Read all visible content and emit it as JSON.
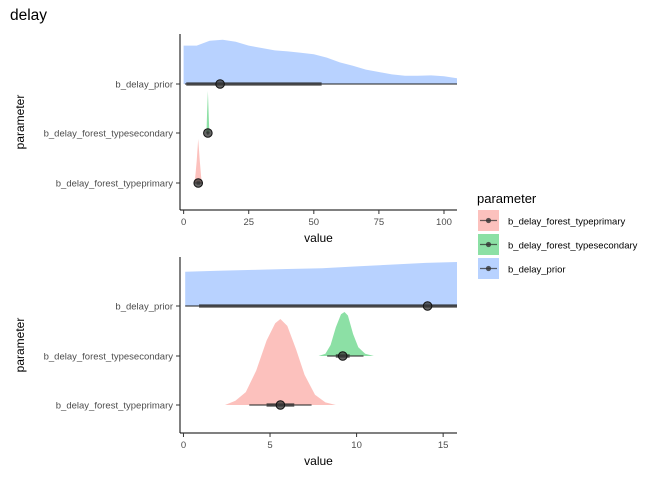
{
  "figure": {
    "title": "delay"
  },
  "legend": {
    "title": "parameter",
    "items": [
      {
        "label": "b_delay_forest_typeprimary",
        "color": "#F8766D"
      },
      {
        "label": "b_delay_forest_typesecondary",
        "color": "#00BA38"
      },
      {
        "label": "b_delay_prior",
        "color": "#619CFF"
      }
    ]
  },
  "chart_data": [
    {
      "type": "halfeye",
      "xlabel": "value",
      "ylabel": "parameter",
      "xlim": [
        -1.4,
        105
      ],
      "xticks": [
        0,
        25,
        50,
        75,
        100
      ],
      "categories": [
        "b_delay_prior",
        "b_delay_forest_typesecondary",
        "b_delay_forest_typeprimary"
      ],
      "series": [
        {
          "name": "b_delay_prior",
          "color": "#619CFF",
          "point": 14,
          "interval_66": [
            1,
            53
          ],
          "interval_95": [
            0.5,
            105
          ],
          "density": [
            [
              0,
              0.8
            ],
            [
              5,
              0.8
            ],
            [
              10,
              0.9
            ],
            [
              15,
              0.92
            ],
            [
              20,
              0.88
            ],
            [
              25,
              0.8
            ],
            [
              30,
              0.75
            ],
            [
              35,
              0.7
            ],
            [
              40,
              0.68
            ],
            [
              45,
              0.65
            ],
            [
              50,
              0.62
            ],
            [
              55,
              0.55
            ],
            [
              60,
              0.45
            ],
            [
              65,
              0.38
            ],
            [
              70,
              0.3
            ],
            [
              75,
              0.25
            ],
            [
              80,
              0.2
            ],
            [
              85,
              0.17
            ],
            [
              90,
              0.17
            ],
            [
              95,
              0.18
            ],
            [
              100,
              0.16
            ],
            [
              105,
              0.12
            ]
          ]
        },
        {
          "name": "b_delay_forest_typesecondary",
          "color": "#00BA38",
          "point": 9.3,
          "interval_66": [
            9,
            9.6
          ],
          "interval_95": [
            8.7,
            10
          ],
          "density": [
            [
              8.5,
              0
            ],
            [
              8.8,
              0.1
            ],
            [
              9.0,
              0.5
            ],
            [
              9.3,
              1.0
            ],
            [
              9.6,
              0.5
            ],
            [
              9.8,
              0.1
            ],
            [
              10.1,
              0
            ]
          ]
        },
        {
          "name": "b_delay_forest_typeprimary",
          "color": "#F8766D",
          "point": 5.6,
          "interval_66": [
            5,
            6.3
          ],
          "interval_95": [
            4.2,
            7.3
          ],
          "density": [
            [
              3.8,
              0
            ],
            [
              4.4,
              0.1
            ],
            [
              5.0,
              0.5
            ],
            [
              5.6,
              1.0
            ],
            [
              6.2,
              0.5
            ],
            [
              6.8,
              0.1
            ],
            [
              7.4,
              0
            ]
          ]
        }
      ]
    },
    {
      "type": "halfeye",
      "xlabel": "value",
      "ylabel": "parameter",
      "xlim": [
        -0.2,
        15.8
      ],
      "xticks": [
        0,
        5,
        10,
        15
      ],
      "categories": [
        "b_delay_prior",
        "b_delay_forest_typesecondary",
        "b_delay_forest_typeprimary"
      ],
      "series": [
        {
          "name": "b_delay_prior",
          "color": "#619CFF",
          "point": 14.1,
          "interval_66": [
            0.9,
            15.8
          ],
          "interval_95": [
            0.1,
            15.8
          ],
          "density": [
            [
              0.1,
              0.78
            ],
            [
              2,
              0.8
            ],
            [
              4,
              0.82
            ],
            [
              6,
              0.84
            ],
            [
              8,
              0.86
            ],
            [
              10,
              0.9
            ],
            [
              12,
              0.94
            ],
            [
              14,
              0.98
            ],
            [
              15.8,
              1.0
            ]
          ]
        },
        {
          "name": "b_delay_forest_typesecondary",
          "color": "#00BA38",
          "point": 9.2,
          "interval_66": [
            8.8,
            9.6
          ],
          "interval_95": [
            8.3,
            10.4
          ],
          "density": [
            [
              7.8,
              0
            ],
            [
              8.2,
              0.05
            ],
            [
              8.5,
              0.25
            ],
            [
              8.8,
              0.65
            ],
            [
              9.1,
              0.95
            ],
            [
              9.3,
              1.0
            ],
            [
              9.5,
              0.92
            ],
            [
              9.8,
              0.5
            ],
            [
              10.1,
              0.2
            ],
            [
              10.5,
              0.05
            ],
            [
              11.0,
              0
            ]
          ]
        },
        {
          "name": "b_delay_forest_typeprimary",
          "color": "#F8766D",
          "point": 5.6,
          "interval_66": [
            4.8,
            6.4
          ],
          "interval_95": [
            3.8,
            7.4
          ],
          "density": [
            [
              2.4,
              0
            ],
            [
              3.0,
              0.05
            ],
            [
              3.6,
              0.15
            ],
            [
              4.2,
              0.4
            ],
            [
              4.8,
              0.75
            ],
            [
              5.3,
              0.95
            ],
            [
              5.6,
              1.0
            ],
            [
              6.0,
              0.92
            ],
            [
              6.5,
              0.65
            ],
            [
              7.0,
              0.35
            ],
            [
              7.6,
              0.12
            ],
            [
              8.2,
              0.03
            ],
            [
              8.8,
              0
            ]
          ]
        }
      ]
    }
  ]
}
